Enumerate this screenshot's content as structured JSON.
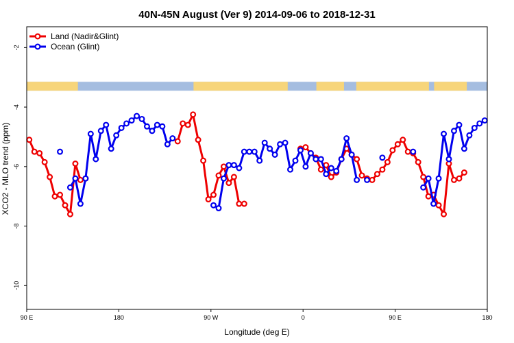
{
  "chart_data": {
    "type": "line",
    "title": "40N-45N August (Ver 9)   2014-09-06 to 2018-12-31",
    "xlabel": "Longitude (deg E)",
    "ylabel": "XCO2 - MLO trend (ppm)",
    "xlim": [
      90,
      540
    ],
    "ylim": [
      -10.8,
      -1.3
    ],
    "x_ticks": [
      {
        "value": 90,
        "label": "90 E"
      },
      {
        "value": 180,
        "label": "180"
      },
      {
        "value": 270,
        "label": "90 W"
      },
      {
        "value": 360,
        "label": "0"
      },
      {
        "value": 450,
        "label": "90 E"
      },
      {
        "value": 540,
        "label": "180"
      }
    ],
    "y_ticks": [
      {
        "value": -2,
        "label": "-2"
      },
      {
        "value": -4,
        "label": "-4"
      },
      {
        "value": -6,
        "label": "-6"
      },
      {
        "value": -8,
        "label": "-8"
      },
      {
        "value": -10,
        "label": "-10"
      }
    ],
    "legend_position": "top-left",
    "colors": {
      "land": "#ee0000",
      "ocean": "#0000ee",
      "land_band": "#f7d57a",
      "ocean_band": "#a5bde0"
    },
    "series": [
      {
        "name": "Land (Nadir&Glint)",
        "color": "#ee0000",
        "x": [
          92.5,
          97.5,
          102.5,
          107.5,
          112.5,
          117.5,
          122.5,
          127.5,
          132.5,
          137.5,
          142.5,
          147.5,
          null,
          237.5,
          242.5,
          247.5,
          252.5,
          257.5,
          262.5,
          267.5,
          272.5,
          277.5,
          282.5,
          287.5,
          292.5,
          297.5,
          302.5,
          null,
          357.5,
          362.5,
          367.5,
          372.5,
          377.5,
          382.5,
          387.5,
          392.5,
          397.5,
          402.5,
          407.5,
          412.5,
          417.5,
          422.5,
          427.5,
          432.5,
          437.5,
          442.5,
          447.5,
          452.5,
          457.5,
          462.5,
          467.5,
          472.5,
          477.5,
          482.5,
          487.5,
          492.5,
          497.5,
          502.5,
          507.5,
          512.5,
          517.5
        ],
        "y": [
          -5.1,
          -5.5,
          -5.55,
          -5.85,
          -6.35,
          -7.0,
          -6.95,
          -7.3,
          -7.6,
          -5.9,
          -6.45,
          -6.4,
          null,
          -5.15,
          -4.55,
          -4.6,
          -4.25,
          -5.1,
          -5.8,
          -7.1,
          -6.95,
          -6.3,
          -6.0,
          -6.55,
          -6.35,
          -7.25,
          -7.25,
          null,
          -5.4,
          -5.35,
          -5.55,
          -5.7,
          -6.1,
          -5.95,
          -6.35,
          -6.2,
          -5.75,
          -5.4,
          -5.6,
          -5.75,
          -6.3,
          -6.4,
          -6.45,
          -6.25,
          -6.1,
          -5.85,
          -5.45,
          -5.25,
          -5.1,
          -5.5,
          -5.55,
          -5.85,
          -6.35,
          -7.0,
          -6.95,
          -7.3,
          -7.6,
          -5.9,
          -6.45,
          -6.4,
          -6.2
        ]
      },
      {
        "name": "Ocean (Glint)",
        "color": "#0000ee",
        "x": [
          122.5,
          null,
          132.5,
          137.5,
          142.5,
          147.5,
          152.5,
          157.5,
          162.5,
          167.5,
          172.5,
          177.5,
          182.5,
          187.5,
          192.5,
          197.5,
          202.5,
          207.5,
          212.5,
          217.5,
          222.5,
          227.5,
          232.5,
          null,
          272.5,
          277.5,
          282.5,
          287.5,
          292.5,
          297.5,
          302.5,
          307.5,
          312.5,
          317.5,
          322.5,
          327.5,
          332.5,
          337.5,
          342.5,
          347.5,
          352.5,
          357.5,
          362.5,
          367.5,
          372.5,
          377.5,
          382.5,
          387.5,
          392.5,
          397.5,
          402.5,
          407.5,
          412.5,
          417.5,
          422.5,
          null,
          437.5,
          null,
          467.5,
          null,
          477.5,
          482.5,
          487.5,
          492.5,
          497.5,
          502.5,
          507.5,
          512.5,
          517.5,
          522.5,
          527.5,
          532.5,
          537.5
        ],
        "y": [
          -5.5,
          null,
          -6.7,
          -6.4,
          -7.25,
          -6.4,
          -4.9,
          -5.75,
          -4.8,
          -4.6,
          -5.4,
          -4.95,
          -4.7,
          -4.55,
          -4.45,
          -4.3,
          -4.4,
          -4.65,
          -4.8,
          -4.6,
          -4.65,
          -5.25,
          -5.05,
          null,
          -7.3,
          -7.4,
          -6.4,
          -5.95,
          -5.95,
          -6.05,
          -5.5,
          -5.5,
          -5.5,
          -5.8,
          -5.2,
          -5.4,
          -5.6,
          -5.25,
          -5.2,
          -6.1,
          -5.8,
          -5.45,
          -6.0,
          -5.55,
          -5.75,
          -5.75,
          -6.25,
          -6.05,
          -6.15,
          -5.75,
          -5.05,
          -5.6,
          -6.45,
          null,
          -6.45,
          null,
          -5.7,
          null,
          -5.5,
          null,
          -6.7,
          -6.4,
          -7.25,
          -6.4,
          -4.9,
          -5.75,
          -4.8,
          -4.6,
          -5.4,
          -4.95,
          -4.7,
          -4.55,
          -4.45
        ]
      }
    ],
    "land_ocean_band": {
      "y_top": -3.15,
      "y_bottom": -3.45,
      "land_segments": [
        [
          90,
          140
        ],
        [
          253,
          345
        ],
        [
          373,
          400
        ],
        [
          412,
          483
        ],
        [
          488,
          520
        ]
      ]
    }
  }
}
